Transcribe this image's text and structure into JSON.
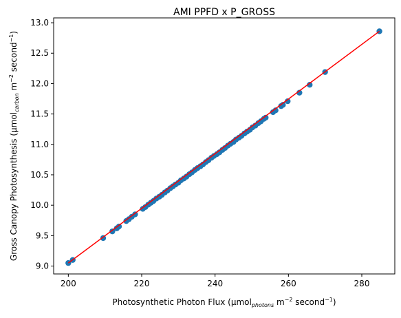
{
  "chart_data": {
    "type": "scatter",
    "title": "AMI PPFD x P_GROSS",
    "xlabel": {
      "prefix": "Photosynthetic Photon Flux (µmol",
      "sub": "photons",
      "mid": " m",
      "sup1": "−2",
      "mid2": " second",
      "sup2": "−1",
      "suffix": ")"
    },
    "ylabel": {
      "prefix": "Gross Canopy Photosynthesis (µmol",
      "sub": "carbon",
      "mid": " m",
      "sup1": "−2",
      "mid2": " second",
      "sup2": "−1",
      "suffix": ")"
    },
    "xlim": [
      196,
      289
    ],
    "ylim": [
      8.87,
      13.08
    ],
    "xticks": [
      200,
      220,
      240,
      260,
      280
    ],
    "xtick_labels": [
      "200",
      "220",
      "240",
      "260",
      "280"
    ],
    "yticks": [
      9.0,
      9.5,
      10.0,
      10.5,
      11.0,
      11.5,
      12.0,
      12.5,
      13.0
    ],
    "ytick_labels": [
      "9.0",
      "9.5",
      "10.0",
      "10.5",
      "11.0",
      "11.5",
      "12.0",
      "12.5",
      "13.0"
    ],
    "grid": false,
    "point_color": "#1f77b4",
    "line_color": "#ff0000",
    "fit_line": {
      "x": [
        200,
        284.8
      ],
      "y": [
        9.05,
        12.86
      ]
    },
    "points": {
      "x": [
        200.0,
        201.2,
        209.5,
        212.0,
        213.2,
        213.8,
        215.8,
        216.5,
        217.3,
        218.2,
        220.3,
        221.0,
        221.8,
        222.5,
        223.2,
        224.0,
        224.8,
        225.5,
        226.3,
        227.0,
        227.8,
        228.5,
        229.2,
        230.0,
        230.7,
        231.5,
        232.2,
        233.0,
        233.7,
        234.5,
        235.2,
        236.0,
        236.7,
        237.5,
        238.2,
        239.0,
        239.7,
        240.5,
        241.2,
        242.0,
        242.7,
        243.5,
        244.2,
        245.0,
        245.7,
        246.5,
        247.2,
        248.0,
        248.7,
        249.5,
        250.2,
        251.0,
        251.8,
        252.5,
        253.3,
        253.8,
        255.8,
        256.5,
        258.0,
        258.5,
        259.8,
        263.0,
        265.8,
        270.0,
        284.8
      ],
      "y": [
        9.05,
        9.1,
        9.46,
        9.57,
        9.62,
        9.65,
        9.74,
        9.77,
        9.81,
        9.85,
        9.94,
        9.97,
        10.01,
        10.04,
        10.07,
        10.11,
        10.14,
        10.17,
        10.21,
        10.24,
        10.28,
        10.31,
        10.34,
        10.37,
        10.41,
        10.44,
        10.47,
        10.51,
        10.54,
        10.58,
        10.61,
        10.64,
        10.67,
        10.71,
        10.74,
        10.78,
        10.81,
        10.84,
        10.87,
        10.91,
        10.94,
        10.98,
        11.01,
        11.04,
        11.08,
        11.11,
        11.14,
        11.18,
        11.21,
        11.24,
        11.28,
        11.31,
        11.35,
        11.38,
        11.42,
        11.44,
        11.53,
        11.56,
        11.63,
        11.65,
        11.71,
        11.85,
        11.98,
        12.19,
        12.86
      ]
    }
  }
}
